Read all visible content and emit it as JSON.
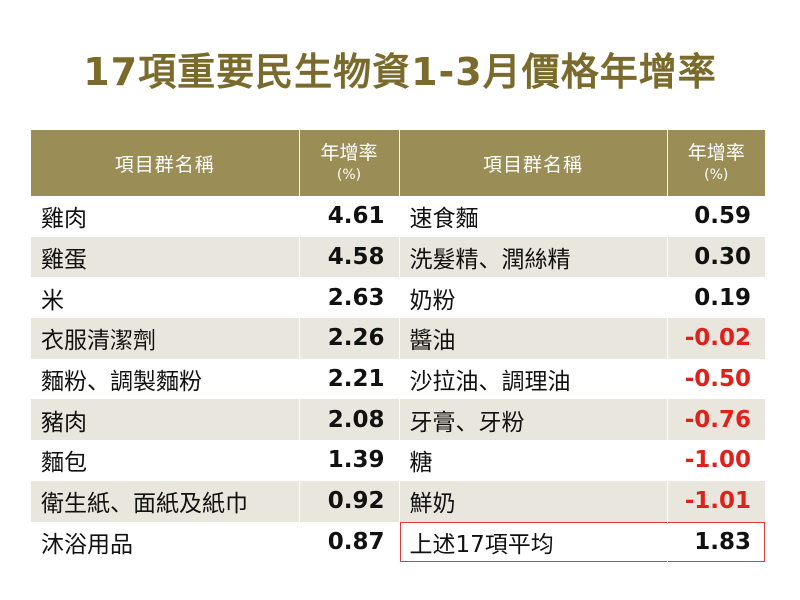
{
  "title": "17項重要民生物資1-3月價格年增率",
  "table": {
    "header": {
      "name_label": "項目群名稱",
      "rate_label": "年增率",
      "rate_unit": "(%)"
    },
    "left": [
      {
        "name": "雞肉",
        "rate": "4.61"
      },
      {
        "name": "雞蛋",
        "rate": "4.58"
      },
      {
        "name": "米",
        "rate": "2.63"
      },
      {
        "name": "衣服清潔劑",
        "rate": "2.26"
      },
      {
        "name": "麵粉、調製麵粉",
        "rate": "2.21"
      },
      {
        "name": "豬肉",
        "rate": "2.08"
      },
      {
        "name": "麵包",
        "rate": "1.39"
      },
      {
        "name": "衛生紙、面紙及紙巾",
        "rate": "0.92"
      },
      {
        "name": "沐浴用品",
        "rate": "0.87"
      }
    ],
    "right": [
      {
        "name": "速食麵",
        "rate": "0.59"
      },
      {
        "name": "洗髮精、潤絲精",
        "rate": "0.30"
      },
      {
        "name": "奶粉",
        "rate": "0.19"
      },
      {
        "name": "醬油",
        "rate": "-0.02"
      },
      {
        "name": "沙拉油、調理油",
        "rate": "-0.50"
      },
      {
        "name": "牙膏、牙粉",
        "rate": "-0.76"
      },
      {
        "name": "糖",
        "rate": "-1.00"
      },
      {
        "name": "鮮奶",
        "rate": "-1.01"
      },
      {
        "name": "上述17項平均",
        "rate": "1.83"
      }
    ]
  },
  "colors": {
    "title": "#7a6b2c",
    "header_bg": "#9a8d56",
    "stripe_bg": "#e9e6dd",
    "negative": "#e0201b",
    "highlight_border": "#e03a3a"
  }
}
